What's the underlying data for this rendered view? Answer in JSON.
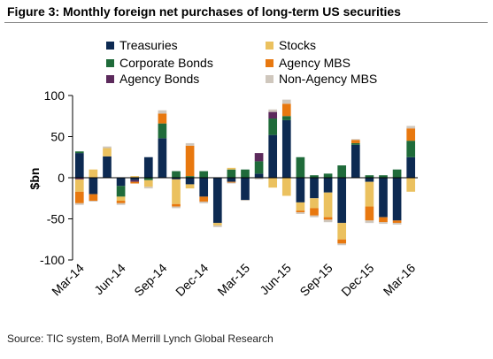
{
  "header": {
    "title": "Figure 3: Monthly foreign net purchases of long-term US securities"
  },
  "footer": {
    "source": "Source: TIC system, BofA Merrill Lynch Global Research"
  },
  "chart_data": {
    "type": "bar",
    "stacked": true,
    "ylabel": "$bn",
    "xlabel": "",
    "ylim": [
      -100,
      100
    ],
    "yticks": [
      100,
      50,
      0,
      -50,
      -100
    ],
    "grid": false,
    "legend_position": "top",
    "categories": [
      "Mar-14",
      "Apr-14",
      "May-14",
      "Jun-14",
      "Jul-14",
      "Aug-14",
      "Sep-14",
      "Oct-14",
      "Nov-14",
      "Dec-14",
      "Jan-15",
      "Feb-15",
      "Mar-15",
      "Apr-15",
      "May-15",
      "Jun-15",
      "Jul-15",
      "Aug-15",
      "Sep-15",
      "Oct-15",
      "Nov-15",
      "Dec-15",
      "Jan-16",
      "Feb-16",
      "Mar-16"
    ],
    "xtick_labels": [
      "Mar-14",
      "Jun-14",
      "Sep-14",
      "Dec-14",
      "Mar-15",
      "Jun-15",
      "Sep-15",
      "Dec-15",
      "Mar-16"
    ],
    "series": [
      {
        "name": "Treasuries",
        "color": "#0d2a52",
        "values": [
          30,
          -20,
          26,
          -10,
          -3,
          25,
          48,
          -2,
          -8,
          -23,
          -55,
          -5,
          -27,
          5,
          52,
          70,
          -30,
          -25,
          -18,
          -55,
          40,
          -5,
          -48,
          -52,
          25
        ]
      },
      {
        "name": "Corporate Bonds",
        "color": "#1f6b3a",
        "values": [
          2,
          0,
          0,
          -13,
          0,
          -3,
          18,
          8,
          2,
          8,
          0,
          10,
          10,
          15,
          20,
          5,
          25,
          3,
          5,
          15,
          2,
          3,
          3,
          10,
          20
        ]
      },
      {
        "name": "Agency Bonds",
        "color": "#5c2a5c",
        "values": [
          -2,
          0,
          0,
          0,
          -2,
          0,
          0,
          0,
          0,
          0,
          0,
          0,
          0,
          10,
          8,
          0,
          0,
          0,
          0,
          0,
          0,
          0,
          0,
          0,
          0
        ]
      },
      {
        "name": "Stocks",
        "color": "#ebc15f",
        "values": [
          -15,
          10,
          10,
          -5,
          2,
          -8,
          0,
          -30,
          -5,
          0,
          -3,
          2,
          0,
          0,
          -12,
          -22,
          -10,
          -12,
          -30,
          -20,
          0,
          -30,
          0,
          0,
          -17
        ]
      },
      {
        "name": "Agency MBS",
        "color": "#e8780f",
        "values": [
          -14,
          -8,
          0,
          -3,
          -2,
          0,
          12,
          -3,
          37,
          -6,
          0,
          -1,
          0,
          0,
          0,
          15,
          -2,
          -9,
          -3,
          -5,
          4,
          -17,
          -6,
          -3,
          15
        ]
      },
      {
        "name": "Non-Agency MBS",
        "color": "#cfc7bd",
        "values": [
          -2,
          -1,
          2,
          -2,
          0,
          -2,
          4,
          -2,
          3,
          -2,
          -2,
          -1,
          -1,
          -2,
          3,
          5,
          -2,
          -2,
          -3,
          -2,
          1,
          -3,
          -2,
          -2,
          3
        ]
      }
    ]
  }
}
